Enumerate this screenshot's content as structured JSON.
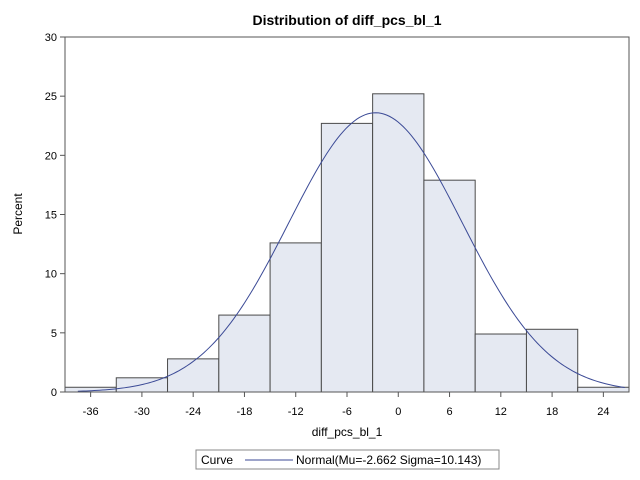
{
  "chart_data": {
    "type": "bar",
    "title": "Distribution of diff_pcs_bl_1",
    "xlabel": "diff_pcs_bl_1",
    "ylabel": "Percent",
    "xlim": [
      -39,
      27
    ],
    "ylim": [
      0,
      30
    ],
    "xticks": [
      -36,
      -30,
      -24,
      -18,
      -12,
      -6,
      0,
      6,
      12,
      18,
      24
    ],
    "yticks": [
      0,
      5,
      10,
      15,
      20,
      25,
      30
    ],
    "bin_width": 6,
    "bin_midpoints": [
      -36,
      -30,
      -24,
      -18,
      -12,
      -6,
      0,
      6,
      12,
      18,
      24
    ],
    "values": [
      0.4,
      1.2,
      2.8,
      6.5,
      12.6,
      22.7,
      25.2,
      17.9,
      4.9,
      5.3,
      0.4
    ],
    "bar_fill": "#e5e9f2",
    "bar_stroke": "#4a4a4a",
    "curve": {
      "name": "Normal(Mu=-2.662 Sigma=10.143)",
      "mu": -2.662,
      "sigma": 10.143,
      "color": "#3b4a96"
    },
    "legend": {
      "label": "Curve",
      "entry": "Normal(Mu=-2.662 Sigma=10.143)",
      "position": "bottom"
    },
    "grid": false
  }
}
